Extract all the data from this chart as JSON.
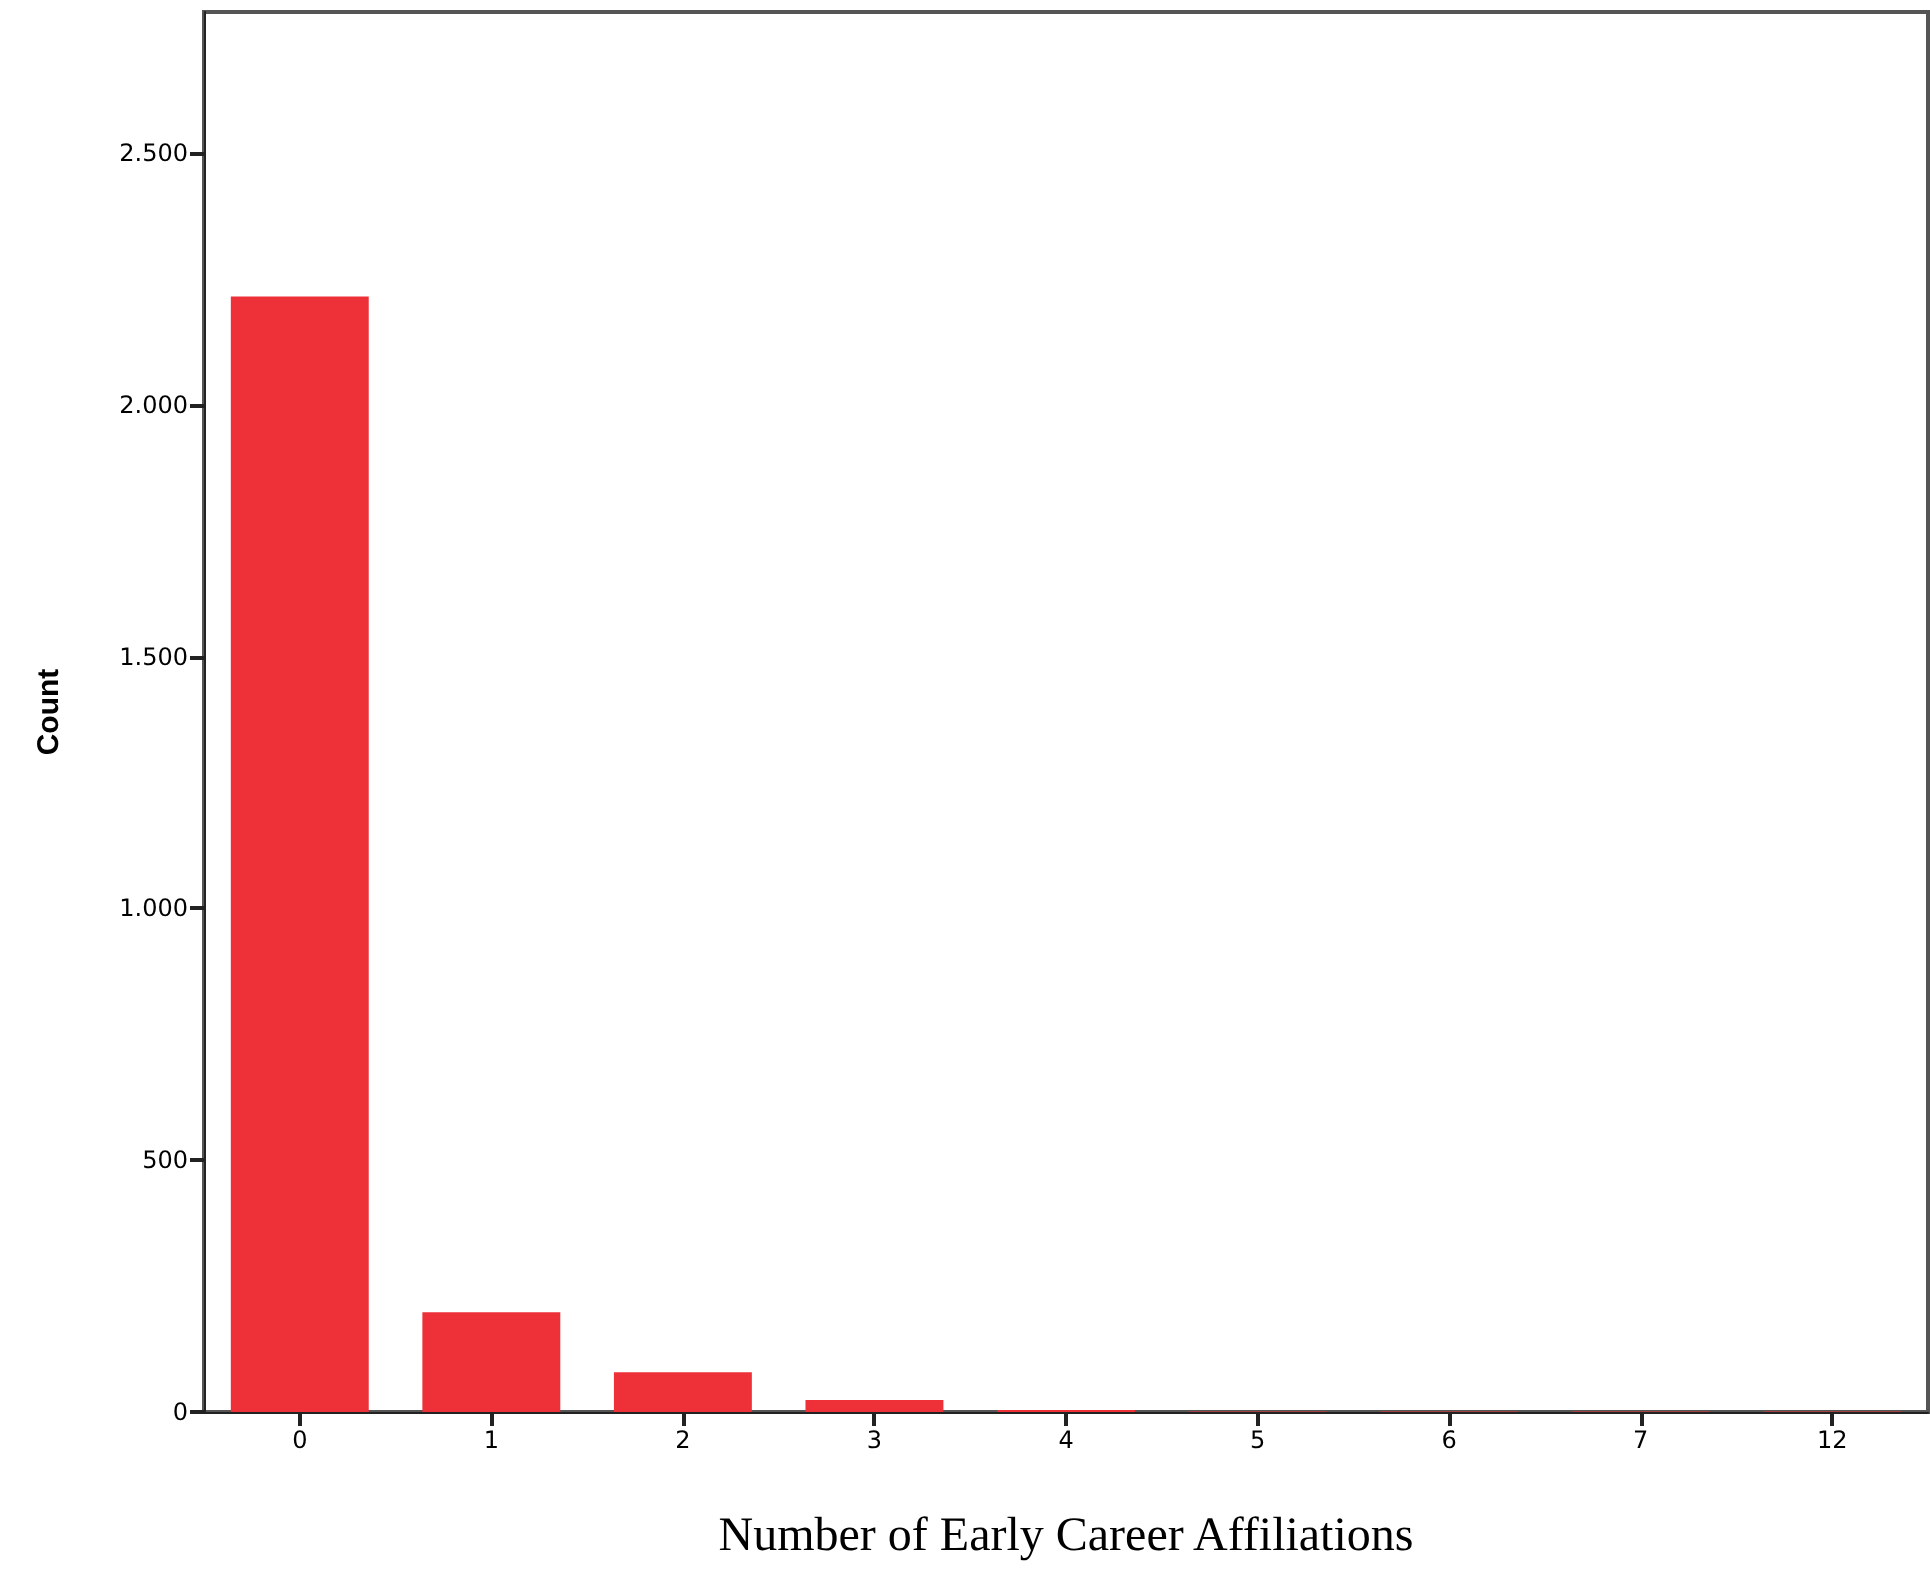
{
  "chart_data": {
    "type": "bar",
    "xlabel": "Number of Early Career Affiliations",
    "ylabel": "Count",
    "categories": [
      "0",
      "1",
      "2",
      "3",
      "4",
      "5",
      "6",
      "7",
      "12"
    ],
    "values": [
      2215,
      198,
      79,
      24,
      4,
      1,
      1,
      1,
      1
    ],
    "color": "#ee3039",
    "ylim": [
      0,
      2780
    ],
    "yticks": [
      0,
      500,
      {
        "value": 1000,
        "label": "1.000"
      },
      {
        "value": 1500,
        "label": "1.500"
      },
      {
        "value": 2000,
        "label": "2.000"
      },
      {
        "value": 2500,
        "label": "2.500"
      }
    ],
    "grid": false
  }
}
